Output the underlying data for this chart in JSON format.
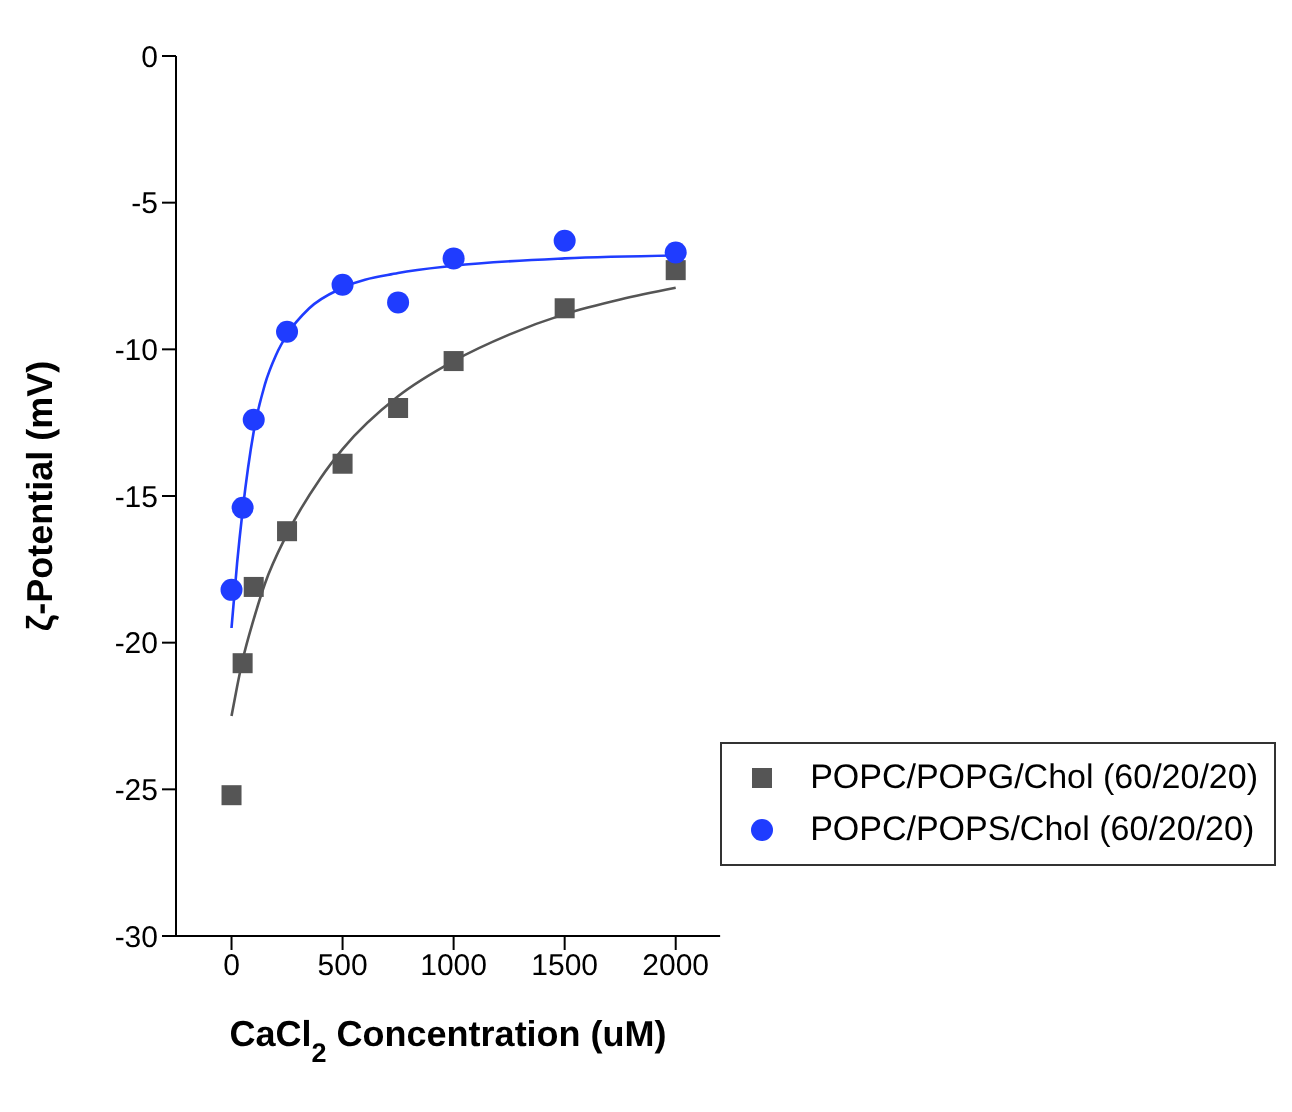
{
  "chart_data": {
    "type": "scatter",
    "xlabel": "CaCl$_{2}$ Concentration (uM)",
    "ylabel": "ζ-Potential (mV)",
    "xlim": [
      -250,
      2200
    ],
    "xticks": [
      0,
      500,
      1000,
      1500,
      2000
    ],
    "ylim": [
      -30,
      0
    ],
    "yticks": [
      -30,
      -25,
      -20,
      -15,
      -10,
      -5,
      0
    ],
    "grid": false,
    "legend": "bottom right",
    "series": [
      {
        "name": "POPC/POPG/Chol (60/20/20)",
        "color": "#555555",
        "marker": "square",
        "x": [
          0,
          50,
          100,
          250,
          500,
          750,
          1000,
          1500,
          2000
        ],
        "values": [
          -25.2,
          -20.7,
          -18.1,
          -16.2,
          -13.9,
          -12.0,
          -10.4,
          -8.6,
          -7.3
        ]
      },
      {
        "name": "POPC/POPS/Chol (60/20/20)",
        "color": "#1f3cff",
        "marker": "circle",
        "x": [
          0,
          50,
          100,
          250,
          500,
          750,
          1000,
          1500,
          2000
        ],
        "values": [
          -18.2,
          -15.4,
          -12.4,
          -9.4,
          -7.8,
          -8.4,
          -6.9,
          -6.3,
          -6.7
        ]
      },
      {
        "type": "line",
        "color": "#555555",
        "marker": "none",
        "x": [
          0,
          25,
          50,
          100,
          150,
          250,
          400,
          500,
          750,
          1000,
          1250,
          1500,
          1750,
          2000
        ],
        "values": [
          -22.5,
          -21.5,
          -20.6,
          -19.2,
          -18.0,
          -16.3,
          -14.4,
          -13.4,
          -11.6,
          -10.4,
          -9.5,
          -8.8,
          -8.3,
          -7.9
        ]
      },
      {
        "type": "line",
        "color": "#1f3cff",
        "marker": "none",
        "x": [
          0,
          25,
          50,
          100,
          150,
          200,
          250,
          350,
          500,
          750,
          1000,
          1500,
          2000
        ],
        "values": [
          -19.5,
          -17.3,
          -15.5,
          -12.8,
          -11.2,
          -10.2,
          -9.5,
          -8.6,
          -7.9,
          -7.4,
          -7.15,
          -6.9,
          -6.8
        ]
      }
    ]
  }
}
